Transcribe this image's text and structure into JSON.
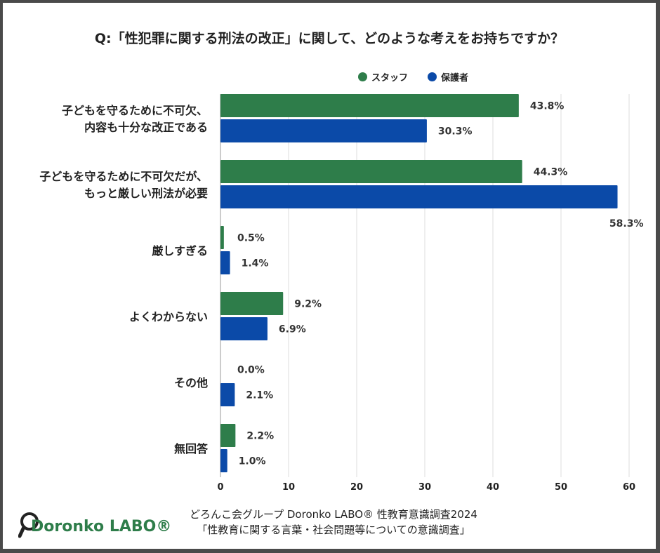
{
  "title": "Q:「性犯罪に関する刑法の改正」に関して、どのような考えをお持ちですか？",
  "legend": [
    {
      "name": "スタッフ",
      "color": "#2e7d4a"
    },
    {
      "name": "保護者",
      "color": "#0b4aa8"
    }
  ],
  "chart_data": {
    "type": "bar",
    "orientation": "horizontal",
    "title": "Q:「性犯罪に関する刑法の改正」に関して、どのような考えをお持ちですか？",
    "categories": [
      [
        "子どもを守るために不可欠、",
        "内容も十分な改正である"
      ],
      [
        "子どもを守るために不可欠だが、",
        "もっと厳しい刑法が必要"
      ],
      [
        "厳しすぎる"
      ],
      [
        "よくわからない"
      ],
      [
        "その他"
      ],
      [
        "無回答"
      ]
    ],
    "series": [
      {
        "name": "スタッフ",
        "color": "#2e7d4a",
        "values": [
          43.8,
          44.3,
          0.5,
          9.2,
          0.0,
          2.2
        ],
        "labels": [
          "43.8%",
          "44.3%",
          "0.5%",
          "9.2%",
          "0.0%",
          "2.2%"
        ]
      },
      {
        "name": "保護者",
        "color": "#0b4aa8",
        "values": [
          30.3,
          58.3,
          1.4,
          6.9,
          2.1,
          1.0
        ],
        "labels": [
          "30.3%",
          "58.3%",
          "1.4%",
          "6.9%",
          "2.1%",
          "1.0%"
        ]
      }
    ],
    "xlim": [
      0,
      60
    ],
    "xticks": [
      "0",
      "10",
      "20",
      "30",
      "40",
      "50",
      "60"
    ],
    "grid": true,
    "legend_position": "top-right"
  },
  "footer": {
    "line1": "どろんこ会グループ Doronko LABO® 性教育意識調査2024",
    "line2": "「性教育に関する言葉・社会問題等についての意識調査」"
  },
  "logo": {
    "text": "Doronko LABO®"
  }
}
